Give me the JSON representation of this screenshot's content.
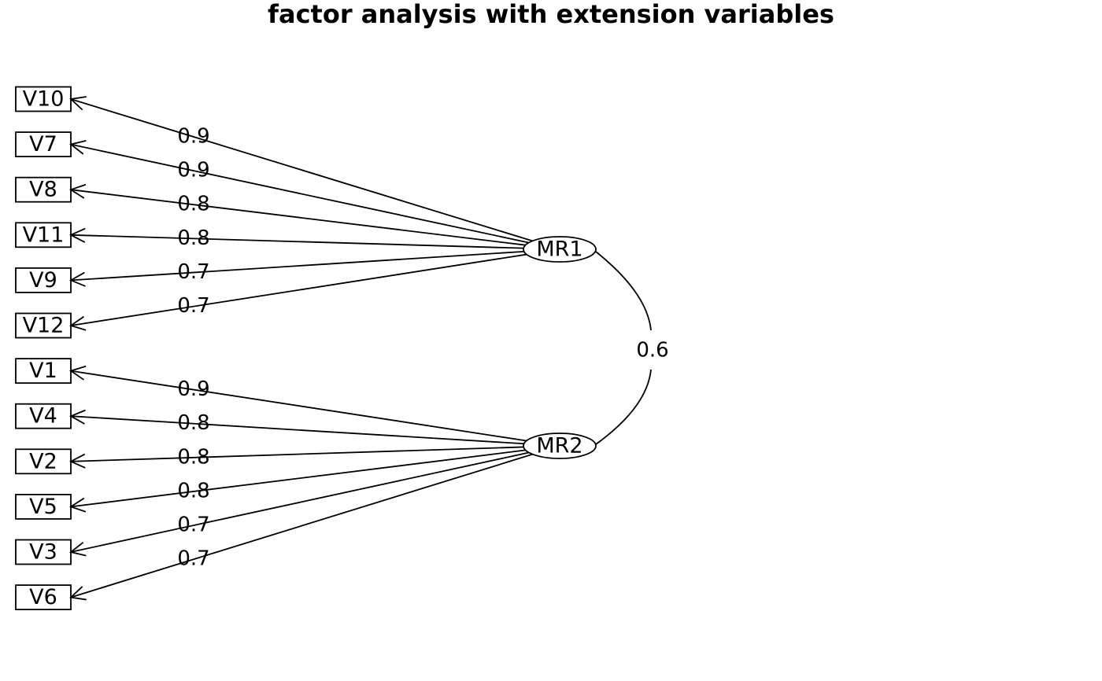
{
  "title": "factor analysis with extension variables",
  "factors": [
    {
      "label": "MR1",
      "indicators": [
        {
          "label": "V10",
          "loading": 0.9
        },
        {
          "label": "V7",
          "loading": 0.9
        },
        {
          "label": "V8",
          "loading": 0.8
        },
        {
          "label": "V11",
          "loading": 0.8
        },
        {
          "label": "V9",
          "loading": 0.7
        },
        {
          "label": "V12",
          "loading": 0.7
        }
      ]
    },
    {
      "label": "MR2",
      "indicators": [
        {
          "label": "V1",
          "loading": 0.9
        },
        {
          "label": "V4",
          "loading": 0.8
        },
        {
          "label": "V2",
          "loading": 0.8
        },
        {
          "label": "V5",
          "loading": 0.8
        },
        {
          "label": "V3",
          "loading": 0.7
        },
        {
          "label": "V6",
          "loading": 0.7
        }
      ]
    }
  ],
  "factor_correlation": 0.6
}
